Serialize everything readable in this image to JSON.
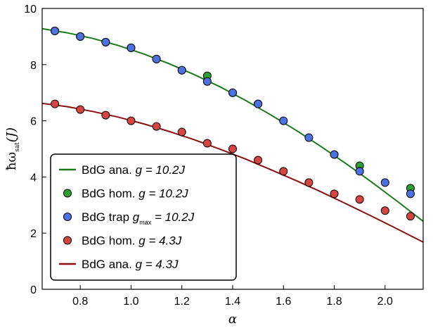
{
  "chart_data": {
    "type": "line",
    "xlabel": "α",
    "ylabel": {
      "main": "ħω",
      "sub": "sat",
      "tail": "(J)"
    },
    "xlim": [
      0.65,
      2.15
    ],
    "ylim": [
      0,
      10
    ],
    "xticks": [
      0.8,
      1.0,
      1.2,
      1.4,
      1.6,
      1.8,
      2.0
    ],
    "xtick_labels": [
      "0.8",
      "1.0",
      "1.2",
      "1.4",
      "1.6",
      "1.8",
      "2.0"
    ],
    "yticks": [
      0,
      2,
      4,
      6,
      8,
      10
    ],
    "ytick_labels": [
      "0",
      "2",
      "4",
      "6",
      "8",
      "10"
    ],
    "grid": false,
    "legend_position": "lower-left",
    "series": [
      {
        "name": "BdG ana. g = 10.2J",
        "label": {
          "text": "BdG ana. ",
          "ital": "g = 10.2J"
        },
        "kind": "line",
        "color": "#1a7a1a",
        "x": [
          0.65,
          0.75,
          0.85,
          0.95,
          1.05,
          1.15,
          1.25,
          1.35,
          1.45,
          1.55,
          1.65,
          1.75,
          1.85,
          1.95,
          2.05,
          2.15
        ],
        "y": [
          9.28,
          9.13,
          8.93,
          8.68,
          8.38,
          8.03,
          7.64,
          7.21,
          6.73,
          6.21,
          5.66,
          5.07,
          4.45,
          3.8,
          3.12,
          2.42
        ]
      },
      {
        "name": "BdG hom. g = 10.2J",
        "label": {
          "text": "BdG hom. ",
          "ital": "g = 10.2J"
        },
        "kind": "scatter",
        "color": "#2ca02c",
        "x": [
          0.7,
          0.8,
          0.9,
          1.0,
          1.1,
          1.2,
          1.3,
          1.4,
          1.5,
          1.9,
          2.1
        ],
        "y": [
          9.2,
          9.0,
          8.8,
          8.6,
          8.2,
          7.8,
          7.6,
          7.0,
          6.6,
          4.4,
          3.6
        ]
      },
      {
        "name": "BdG trap g_max = 10.2J",
        "label": {
          "text": "BdG trap ",
          "ital_main": "g",
          "sub": "max",
          "ital": " = 10.2J"
        },
        "kind": "scatter",
        "color": "#4c72e0",
        "x": [
          0.7,
          0.8,
          0.9,
          1.0,
          1.1,
          1.2,
          1.3,
          1.4,
          1.5,
          1.6,
          1.7,
          1.8,
          1.9,
          2.0,
          2.1
        ],
        "y": [
          9.2,
          9.0,
          8.8,
          8.6,
          8.2,
          7.8,
          7.4,
          7.0,
          6.6,
          6.0,
          5.4,
          4.8,
          4.2,
          3.8,
          3.4
        ]
      },
      {
        "name": "BdG hom. g = 4.3J",
        "label": {
          "text": "BdG hom. ",
          "ital": "g = 4.3J"
        },
        "kind": "scatter",
        "color": "#d64541",
        "x": [
          0.7,
          0.8,
          0.9,
          1.0,
          1.1,
          1.2,
          1.3,
          1.4,
          1.5,
          1.6,
          1.7,
          1.8,
          1.9,
          2.0,
          2.1
        ],
        "y": [
          6.6,
          6.4,
          6.2,
          6.0,
          5.8,
          5.6,
          5.2,
          5.0,
          4.6,
          4.2,
          3.8,
          3.4,
          3.2,
          2.8,
          2.6
        ]
      },
      {
        "name": "BdG ana. g = 4.3J",
        "label": {
          "text": "BdG ana. ",
          "ital": "g = 4.3J"
        },
        "kind": "line",
        "color": "#8b0f0f",
        "x": [
          0.65,
          0.75,
          0.85,
          0.95,
          1.05,
          1.15,
          1.25,
          1.35,
          1.45,
          1.55,
          1.65,
          1.75,
          1.85,
          1.95,
          2.05,
          2.15
        ],
        "y": [
          6.62,
          6.5,
          6.33,
          6.13,
          5.89,
          5.62,
          5.32,
          4.99,
          4.64,
          4.26,
          3.87,
          3.46,
          3.03,
          2.59,
          2.14,
          1.68
        ]
      }
    ]
  }
}
